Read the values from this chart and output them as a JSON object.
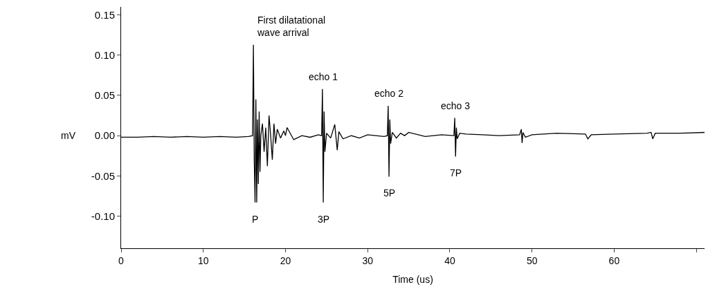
{
  "chart_data": {
    "type": "line",
    "xlabel": "Time (us)",
    "ylabel": "mV",
    "x": [
      0,
      2,
      4,
      6,
      8,
      10,
      12,
      14,
      15.5,
      16.0,
      16.1,
      16.2,
      16.3,
      16.4,
      16.5,
      16.6,
      16.7,
      16.8,
      16.9,
      17.0,
      17.2,
      17.4,
      17.6,
      17.8,
      18.0,
      18.2,
      18.4,
      18.6,
      18.8,
      19.0,
      19.4,
      19.8,
      20.0,
      20.2,
      21,
      22,
      23,
      24,
      24.4,
      24.5,
      24.6,
      24.7,
      24.8,
      25.0,
      25.5,
      26.0,
      26.3,
      26.5,
      27,
      28,
      29,
      30,
      31,
      32,
      32.4,
      32.5,
      32.6,
      32.7,
      32.8,
      33.0,
      33.5,
      34,
      34.5,
      35,
      37,
      39,
      40.5,
      40.6,
      40.7,
      40.8,
      40.9,
      41.2,
      42,
      44,
      46,
      48.5,
      48.7,
      48.8,
      48.9,
      49.2,
      50,
      53,
      56.5,
      56.8,
      57.2,
      60,
      64,
      64.5,
      64.7,
      65,
      68,
      71
    ],
    "values": [
      -0.002,
      -0.002,
      -0.001,
      -0.002,
      -0.001,
      -0.002,
      -0.001,
      -0.002,
      -0.001,
      0.0,
      0.113,
      -0.03,
      -0.083,
      0.045,
      -0.083,
      0.02,
      -0.06,
      0.03,
      -0.045,
      0.0,
      0.015,
      -0.02,
      0.01,
      -0.038,
      0.025,
      0.0,
      -0.03,
      0.015,
      -0.01,
      0.008,
      -0.003,
      0.006,
      0.0,
      0.01,
      -0.005,
      0.0,
      -0.002,
      0.001,
      0.0,
      0.058,
      -0.083,
      0.03,
      -0.02,
      0.003,
      -0.003,
      0.014,
      -0.018,
      0.005,
      -0.004,
      0.0,
      -0.003,
      0.001,
      0.0,
      -0.001,
      0.0,
      0.037,
      -0.051,
      0.02,
      -0.01,
      0.004,
      -0.003,
      0.003,
      0.0,
      0.004,
      -0.001,
      0.001,
      0.0,
      0.022,
      -0.026,
      0.01,
      -0.004,
      0.003,
      0.002,
      0.001,
      0.0,
      0.001,
      0.008,
      -0.009,
      0.004,
      -0.002,
      0.001,
      0.003,
      0.002,
      -0.004,
      0.001,
      0.002,
      0.003,
      0.004,
      -0.004,
      0.003,
      0.003,
      0.004
    ],
    "color": "#000000",
    "xlim": [
      0,
      71
    ],
    "ylim": [
      -0.14,
      0.16
    ],
    "xticks": [
      0,
      10,
      20,
      30,
      40,
      50,
      60,
      {
        "value": 70,
        "label": null
      }
    ],
    "yticks": [
      0.15,
      {
        "value": 0.1,
        "label": "0.10"
      },
      0.05,
      {
        "value": 0,
        "label": "0.00"
      },
      -0.05,
      {
        "value": -0.1,
        "label": "-0.10"
      }
    ],
    "marker": "none",
    "line_style": "solid",
    "annotations": [
      {
        "text": "First dilatational\nwave arrival",
        "x": 16.3,
        "y": 0.113
      },
      {
        "text": "echo 1",
        "x": 24.6,
        "y": 0.058
      },
      {
        "text": "echo 2",
        "x": 32.6,
        "y": 0.037
      },
      {
        "text": "echo 3",
        "x": 40.7,
        "y": 0.022
      },
      {
        "text": "P",
        "x": 16.3,
        "y": -0.083
      },
      {
        "text": "3P",
        "x": 24.6,
        "y": -0.083
      },
      {
        "text": "5P",
        "x": 32.6,
        "y": -0.051
      },
      {
        "text": "7P",
        "x": 40.7,
        "y": -0.026
      }
    ]
  }
}
